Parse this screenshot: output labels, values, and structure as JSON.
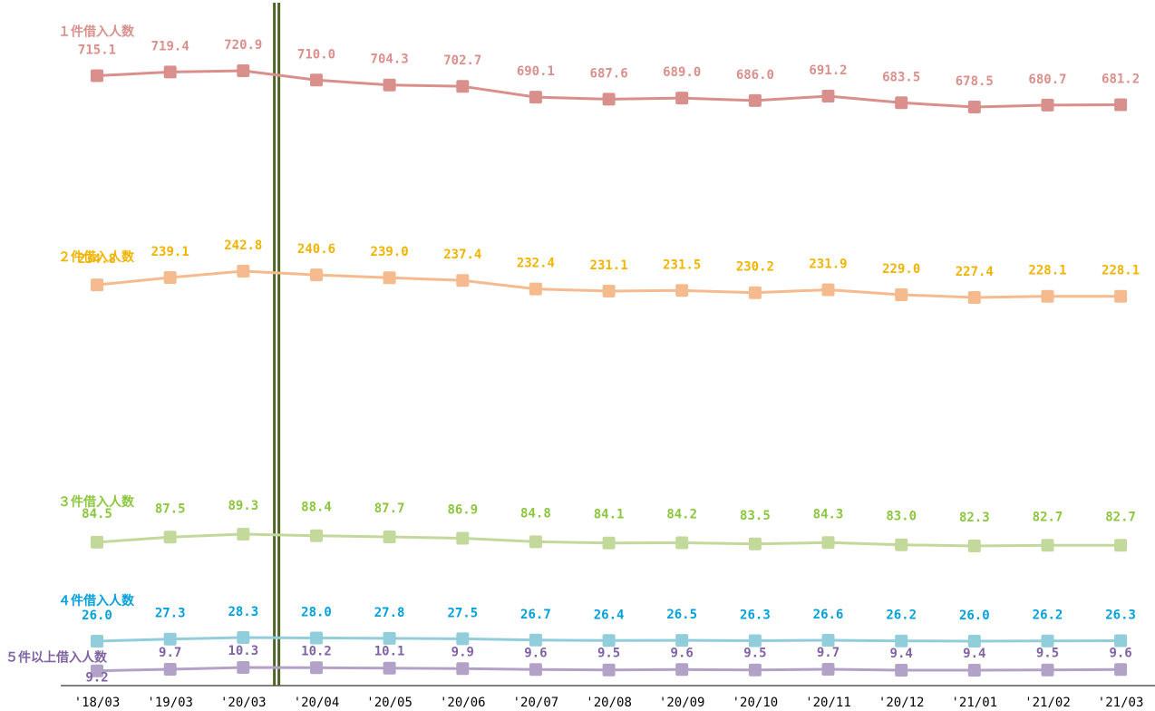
{
  "chart_data": {
    "type": "line",
    "categories": [
      "'18/03",
      "'19/03",
      "'20/03",
      "'20/04",
      "'20/05",
      "'20/06",
      "'20/07",
      "'20/08",
      "'20/09",
      "'20/10",
      "'20/11",
      "'20/12",
      "'21/01",
      "'21/02",
      "'21/03"
    ],
    "series": [
      {
        "name": "１件借入人数",
        "color": "#d9908c",
        "label_color": "#d9908c",
        "values": [
          715.1,
          719.4,
          720.9,
          710.0,
          704.3,
          702.7,
          690.1,
          687.6,
          689.0,
          686.0,
          691.2,
          683.5,
          678.5,
          680.7,
          681.2
        ],
        "value_labels": [
          "715.1",
          "719.4",
          "720.9",
          "710.0",
          "704.3",
          "702.7",
          "690.1",
          "687.6",
          "689.0",
          "686.0",
          "691.2",
          "683.5",
          "678.5",
          "680.7",
          "681.2"
        ]
      },
      {
        "name": "２件借入人数",
        "color": "#f5bb8e",
        "label_color": "#f0b400",
        "values": [
          234.8,
          239.1,
          242.8,
          240.6,
          239.0,
          237.4,
          232.4,
          231.1,
          231.5,
          230.2,
          231.9,
          229.0,
          227.4,
          228.1,
          228.1
        ],
        "value_labels": [
          "234.8",
          "239.1",
          "242.8",
          "240.6",
          "239.0",
          "237.4",
          "232.4",
          "231.1",
          "231.5",
          "230.2",
          "231.9",
          "229.0",
          "227.4",
          "228.1",
          "228.1"
        ]
      },
      {
        "name": "３件借入人数",
        "color": "#c3d89b",
        "label_color": "#8cc63f",
        "values": [
          84.5,
          87.5,
          89.3,
          88.4,
          87.7,
          86.9,
          84.8,
          84.1,
          84.2,
          83.5,
          84.3,
          83.0,
          82.3,
          82.7,
          82.7
        ],
        "value_labels": [
          "84.5",
          "87.5",
          "89.3",
          "88.4",
          "87.7",
          "86.9",
          "84.8",
          "84.1",
          "84.2",
          "83.5",
          "84.3",
          "83.0",
          "82.3",
          "82.7",
          "82.7"
        ]
      },
      {
        "name": "４件借入人数",
        "color": "#92cddc",
        "label_color": "#00a0dc",
        "values": [
          26.0,
          27.3,
          28.3,
          28.0,
          27.8,
          27.5,
          26.7,
          26.4,
          26.5,
          26.3,
          26.6,
          26.2,
          26.0,
          26.2,
          26.3
        ],
        "value_labels": [
          "26.0",
          "27.3",
          "28.3",
          "28.0",
          "27.8",
          "27.5",
          "26.7",
          "26.4",
          "26.5",
          "26.3",
          "26.6",
          "26.2",
          "26.0",
          "26.2",
          "26.3"
        ]
      },
      {
        "name": "５件以上借入人数",
        "color": "#b3a2c7",
        "label_color": "#7f63a4",
        "values": [
          9.2,
          9.7,
          10.3,
          10.2,
          10.1,
          9.9,
          9.6,
          9.5,
          9.6,
          9.5,
          9.7,
          9.4,
          9.4,
          9.5,
          9.6
        ],
        "value_labels": [
          "9.2",
          "9.7",
          "10.3",
          "10.2",
          "10.1",
          "9.9",
          "9.6",
          "9.5",
          "9.6",
          "9.5",
          "9.7",
          "9.4",
          "9.4",
          "9.5",
          "9.6"
        ]
      }
    ],
    "divider_after": "'20/03",
    "divider_color": "#4f6228",
    "grid": false,
    "legend": "inline-left"
  }
}
